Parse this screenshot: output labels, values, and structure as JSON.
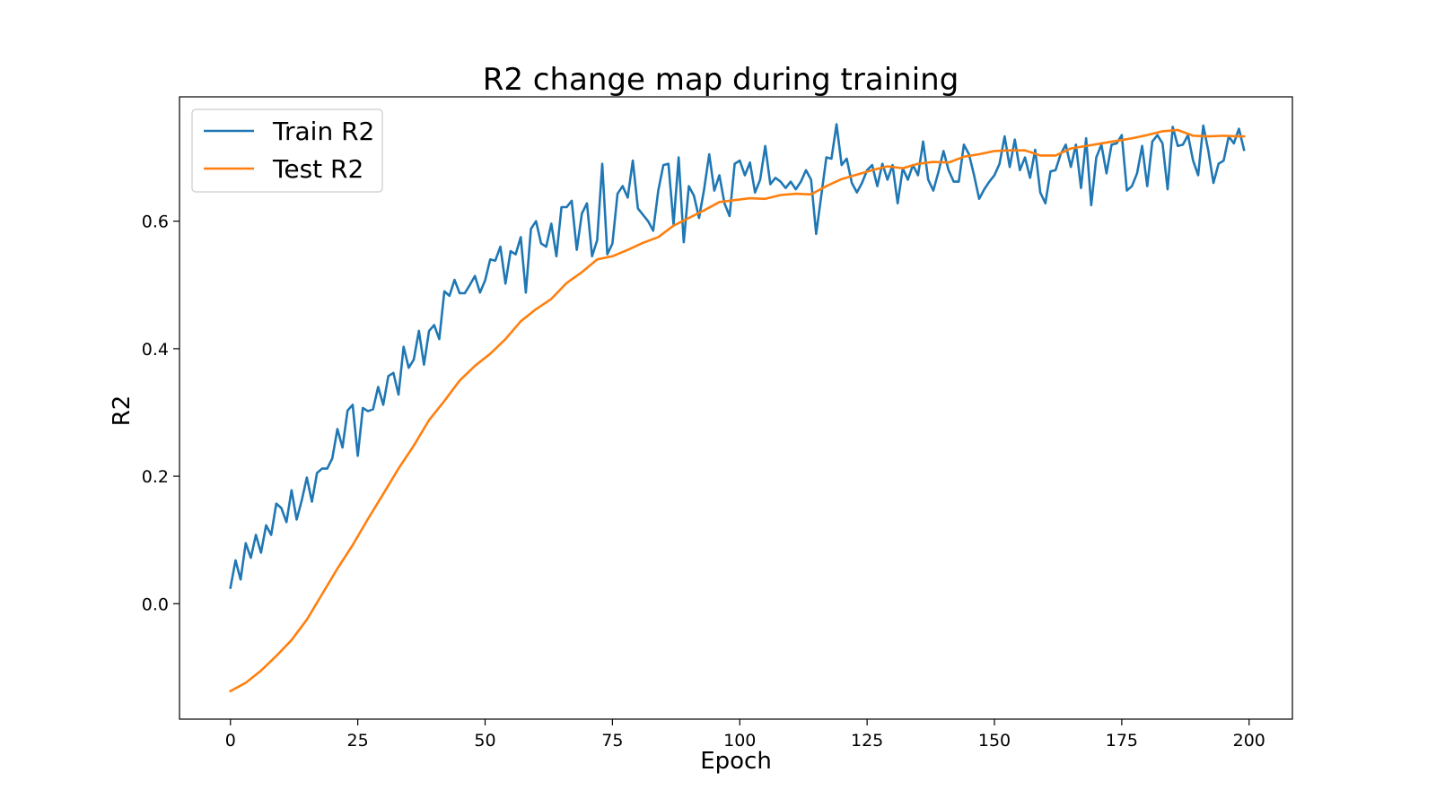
{
  "chart_data": {
    "type": "line",
    "title": "R2 change map during training",
    "xlabel": "Epoch",
    "ylabel": "R2",
    "xlim": [
      -10,
      208.5
    ],
    "ylim": [
      -0.181,
      0.795
    ],
    "xticks": [
      0,
      25,
      50,
      75,
      100,
      125,
      150,
      175,
      200
    ],
    "yticks": [
      0.0,
      0.2,
      0.4,
      0.6
    ],
    "ytick_labels": [
      "0.0",
      "0.2",
      "0.4",
      "0.6"
    ],
    "grid": false,
    "legend_position": "top-left",
    "series": [
      {
        "name": "Train R2",
        "color": "#1f77b4",
        "values": [
          0.025,
          0.068,
          0.038,
          0.095,
          0.072,
          0.108,
          0.08,
          0.123,
          0.108,
          0.157,
          0.15,
          0.128,
          0.178,
          0.132,
          0.162,
          0.198,
          0.16,
          0.205,
          0.212,
          0.212,
          0.228,
          0.274,
          0.245,
          0.303,
          0.312,
          0.232,
          0.307,
          0.302,
          0.305,
          0.34,
          0.312,
          0.357,
          0.362,
          0.328,
          0.403,
          0.37,
          0.383,
          0.428,
          0.375,
          0.428,
          0.437,
          0.415,
          0.49,
          0.483,
          0.508,
          0.487,
          0.487,
          0.5,
          0.514,
          0.488,
          0.507,
          0.54,
          0.538,
          0.56,
          0.502,
          0.553,
          0.548,
          0.575,
          0.488,
          0.588,
          0.6,
          0.565,
          0.56,
          0.596,
          0.545,
          0.622,
          0.622,
          0.632,
          0.555,
          0.612,
          0.628,
          0.545,
          0.57,
          0.69,
          0.548,
          0.565,
          0.643,
          0.655,
          0.637,
          0.695,
          0.62,
          0.61,
          0.6,
          0.585,
          0.648,
          0.688,
          0.69,
          0.595,
          0.7,
          0.567,
          0.655,
          0.64,
          0.605,
          0.65,
          0.705,
          0.648,
          0.672,
          0.628,
          0.608,
          0.69,
          0.695,
          0.672,
          0.692,
          0.645,
          0.665,
          0.718,
          0.658,
          0.668,
          0.662,
          0.652,
          0.662,
          0.65,
          0.662,
          0.68,
          0.665,
          0.58,
          0.64,
          0.7,
          0.698,
          0.752,
          0.688,
          0.698,
          0.66,
          0.645,
          0.66,
          0.68,
          0.688,
          0.655,
          0.69,
          0.665,
          0.688,
          0.628,
          0.683,
          0.665,
          0.688,
          0.672,
          0.725,
          0.665,
          0.648,
          0.677,
          0.71,
          0.68,
          0.662,
          0.662,
          0.72,
          0.705,
          0.672,
          0.635,
          0.65,
          0.662,
          0.672,
          0.69,
          0.733,
          0.685,
          0.728,
          0.68,
          0.7,
          0.668,
          0.712,
          0.645,
          0.628,
          0.678,
          0.68,
          0.705,
          0.72,
          0.685,
          0.72,
          0.652,
          0.73,
          0.625,
          0.7,
          0.72,
          0.675,
          0.72,
          0.722,
          0.735,
          0.648,
          0.655,
          0.675,
          0.718,
          0.655,
          0.725,
          0.735,
          0.722,
          0.65,
          0.748,
          0.718,
          0.72,
          0.735,
          0.695,
          0.672,
          0.75,
          0.71,
          0.66,
          0.69,
          0.695,
          0.733,
          0.722,
          0.745,
          0.712
        ],
        "x_start": 0,
        "x_step": 1
      },
      {
        "name": "Test R2",
        "color": "#ff7f0e",
        "points": [
          [
            0,
            -0.137
          ],
          [
            3,
            -0.124
          ],
          [
            6,
            -0.105
          ],
          [
            9,
            -0.082
          ],
          [
            12,
            -0.057
          ],
          [
            15,
            -0.025
          ],
          [
            18,
            0.015
          ],
          [
            21,
            0.055
          ],
          [
            24,
            0.092
          ],
          [
            27,
            0.133
          ],
          [
            30,
            0.172
          ],
          [
            33,
            0.212
          ],
          [
            36,
            0.248
          ],
          [
            39,
            0.288
          ],
          [
            42,
            0.318
          ],
          [
            45,
            0.35
          ],
          [
            48,
            0.373
          ],
          [
            51,
            0.392
          ],
          [
            54,
            0.415
          ],
          [
            57,
            0.443
          ],
          [
            60,
            0.462
          ],
          [
            63,
            0.478
          ],
          [
            66,
            0.503
          ],
          [
            69,
            0.52
          ],
          [
            72,
            0.54
          ],
          [
            75,
            0.545
          ],
          [
            78,
            0.555
          ],
          [
            81,
            0.566
          ],
          [
            84,
            0.575
          ],
          [
            87,
            0.593
          ],
          [
            90,
            0.605
          ],
          [
            93,
            0.617
          ],
          [
            96,
            0.63
          ],
          [
            99,
            0.633
          ],
          [
            102,
            0.636
          ],
          [
            105,
            0.635
          ],
          [
            108,
            0.641
          ],
          [
            111,
            0.643
          ],
          [
            114,
            0.642
          ],
          [
            117,
            0.655
          ],
          [
            120,
            0.666
          ],
          [
            123,
            0.673
          ],
          [
            126,
            0.68
          ],
          [
            129,
            0.686
          ],
          [
            132,
            0.683
          ],
          [
            135,
            0.69
          ],
          [
            138,
            0.693
          ],
          [
            141,
            0.692
          ],
          [
            144,
            0.701
          ],
          [
            147,
            0.705
          ],
          [
            150,
            0.71
          ],
          [
            153,
            0.711
          ],
          [
            156,
            0.711
          ],
          [
            159,
            0.703
          ],
          [
            162,
            0.703
          ],
          [
            165,
            0.714
          ],
          [
            168,
            0.718
          ],
          [
            171,
            0.722
          ],
          [
            174,
            0.726
          ],
          [
            177,
            0.73
          ],
          [
            180,
            0.735
          ],
          [
            183,
            0.741
          ],
          [
            186,
            0.743
          ],
          [
            189,
            0.734
          ],
          [
            192,
            0.733
          ],
          [
            195,
            0.734
          ],
          [
            198,
            0.733
          ],
          [
            199,
            0.733
          ]
        ]
      }
    ]
  }
}
